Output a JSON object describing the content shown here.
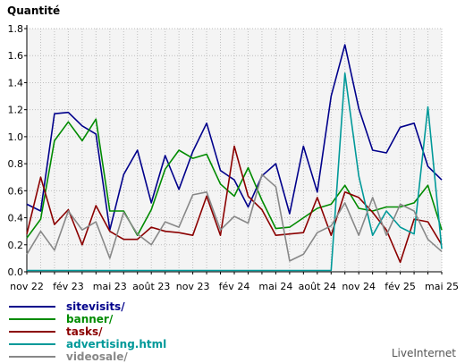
{
  "chart_data": {
    "type": "line",
    "ylabel": "Quantité",
    "ylim": [
      0,
      1.8
    ],
    "yticks": [
      0.0,
      0.2,
      0.4,
      0.6,
      0.8,
      1.0,
      1.2,
      1.4,
      1.6,
      1.8
    ],
    "ytick_labels": [
      "0.0",
      "0.2",
      "0.4",
      "0.6",
      "0.8",
      "1.0",
      "1.2",
      "1.4",
      "1.6",
      "1.8"
    ],
    "x": [
      "2022-11",
      "2022-12",
      "2023-01",
      "2023-02",
      "2023-03",
      "2023-04",
      "2023-05",
      "2023-06",
      "2023-07",
      "2023-08",
      "2023-09",
      "2023-10",
      "2023-11",
      "2023-12",
      "2024-01",
      "2024-02",
      "2024-03",
      "2024-04",
      "2024-05",
      "2024-06",
      "2024-07",
      "2024-08",
      "2024-09",
      "2024-10",
      "2024-11",
      "2024-12",
      "2025-01",
      "2025-02",
      "2025-03",
      "2025-04",
      "2025-05"
    ],
    "xtick_labels": [
      "nov 22",
      "fév 23",
      "mai 23",
      "août 23",
      "nov 23",
      "fév 24",
      "mai 24",
      "août 24",
      "nov 24",
      "fév 25",
      "mai 25"
    ],
    "xtick_index": [
      0,
      3,
      6,
      9,
      12,
      15,
      18,
      21,
      24,
      27,
      30
    ],
    "grid": true,
    "legend_position": "bottom-left",
    "series": [
      {
        "name": "sitevisits/",
        "color": "#00008b",
        "values": [
          0.5,
          0.45,
          1.17,
          1.18,
          1.08,
          1.02,
          0.31,
          0.72,
          0.9,
          0.51,
          0.86,
          0.61,
          0.89,
          1.1,
          0.75,
          0.68,
          0.48,
          0.71,
          0.8,
          0.43,
          0.93,
          0.59,
          1.3,
          1.68,
          1.21,
          0.9,
          0.88,
          1.07,
          1.1,
          0.78,
          0.68
        ]
      },
      {
        "name": "banner/",
        "color": "#008b00",
        "values": [
          0.25,
          0.39,
          0.97,
          1.11,
          0.97,
          1.13,
          0.45,
          0.45,
          0.27,
          0.46,
          0.76,
          0.9,
          0.84,
          0.87,
          0.65,
          0.56,
          0.77,
          0.53,
          0.32,
          0.33,
          0.4,
          0.47,
          0.5,
          0.64,
          0.47,
          0.45,
          0.48,
          0.48,
          0.51,
          0.64,
          0.31
        ]
      },
      {
        "name": "tasks/",
        "color": "#8b0000",
        "values": [
          0.28,
          0.7,
          0.35,
          0.46,
          0.2,
          0.49,
          0.3,
          0.24,
          0.24,
          0.33,
          0.3,
          0.29,
          0.27,
          0.56,
          0.27,
          0.93,
          0.56,
          0.46,
          0.27,
          0.28,
          0.29,
          0.55,
          0.27,
          0.59,
          0.55,
          0.44,
          0.31,
          0.07,
          0.39,
          0.37,
          0.2
        ]
      },
      {
        "name": "advertising.html",
        "color": "#009999",
        "values": [
          0.01,
          0.01,
          0.01,
          0.01,
          0.01,
          0.01,
          0.01,
          0.01,
          0.01,
          0.01,
          0.01,
          0.01,
          0.01,
          0.01,
          0.01,
          0.01,
          0.01,
          0.01,
          0.01,
          0.01,
          0.01,
          0.01,
          0.01,
          1.47,
          0.71,
          0.27,
          0.45,
          0.33,
          0.28,
          1.22,
          0.17
        ]
      },
      {
        "name": "videosale/",
        "color": "#888888",
        "values": [
          0.13,
          0.3,
          0.16,
          0.45,
          0.31,
          0.37,
          0.1,
          0.44,
          0.28,
          0.2,
          0.37,
          0.33,
          0.57,
          0.59,
          0.31,
          0.41,
          0.36,
          0.72,
          0.63,
          0.08,
          0.13,
          0.29,
          0.34,
          0.51,
          0.27,
          0.55,
          0.27,
          0.5,
          0.45,
          0.24,
          0.15
        ]
      }
    ]
  },
  "branding": "LiveInternet"
}
